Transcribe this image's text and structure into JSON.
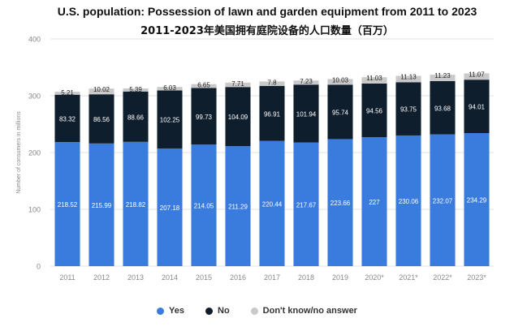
{
  "title": "U.S. population: Possession of lawn and garden equipment from 2011 to 2023",
  "subtitle": "2011-2023年美国拥有庭院设备的人口数量（百万）",
  "colors": {
    "yes": "#3a7cde",
    "no": "#0f1e2d",
    "dontknow": "#c9c9c9",
    "grid": "#e2e2e2",
    "axis_text": "#888888"
  },
  "chart_data": {
    "type": "bar",
    "stacked": true,
    "categories": [
      "2011",
      "2012",
      "2013",
      "2014",
      "2015",
      "2016",
      "2017",
      "2018",
      "2019",
      "2020*",
      "2021*",
      "2022*",
      "2023*"
    ],
    "series": [
      {
        "name": "Yes",
        "values": [
          218.52,
          215.99,
          218.82,
          207.18,
          214.05,
          211.29,
          220.44,
          217.67,
          223.66,
          227,
          230.06,
          232.07,
          234.29
        ]
      },
      {
        "name": "No",
        "values": [
          83.32,
          86.56,
          88.66,
          102.25,
          99.73,
          104.09,
          96.91,
          101.94,
          95.74,
          94.56,
          93.75,
          93.68,
          94.01
        ]
      },
      {
        "name": "Don't know/no answer",
        "values": [
          5.21,
          10.02,
          5.39,
          6.03,
          6.65,
          7.71,
          7.8,
          7.23,
          10.03,
          11.03,
          11.13,
          11.23,
          11.07
        ]
      }
    ],
    "ylabel": "Number of consumers in millions",
    "ylim": [
      0,
      400
    ],
    "yticks": [
      0,
      100,
      200,
      300,
      400
    ],
    "grid": true,
    "legend_position": "bottom"
  }
}
